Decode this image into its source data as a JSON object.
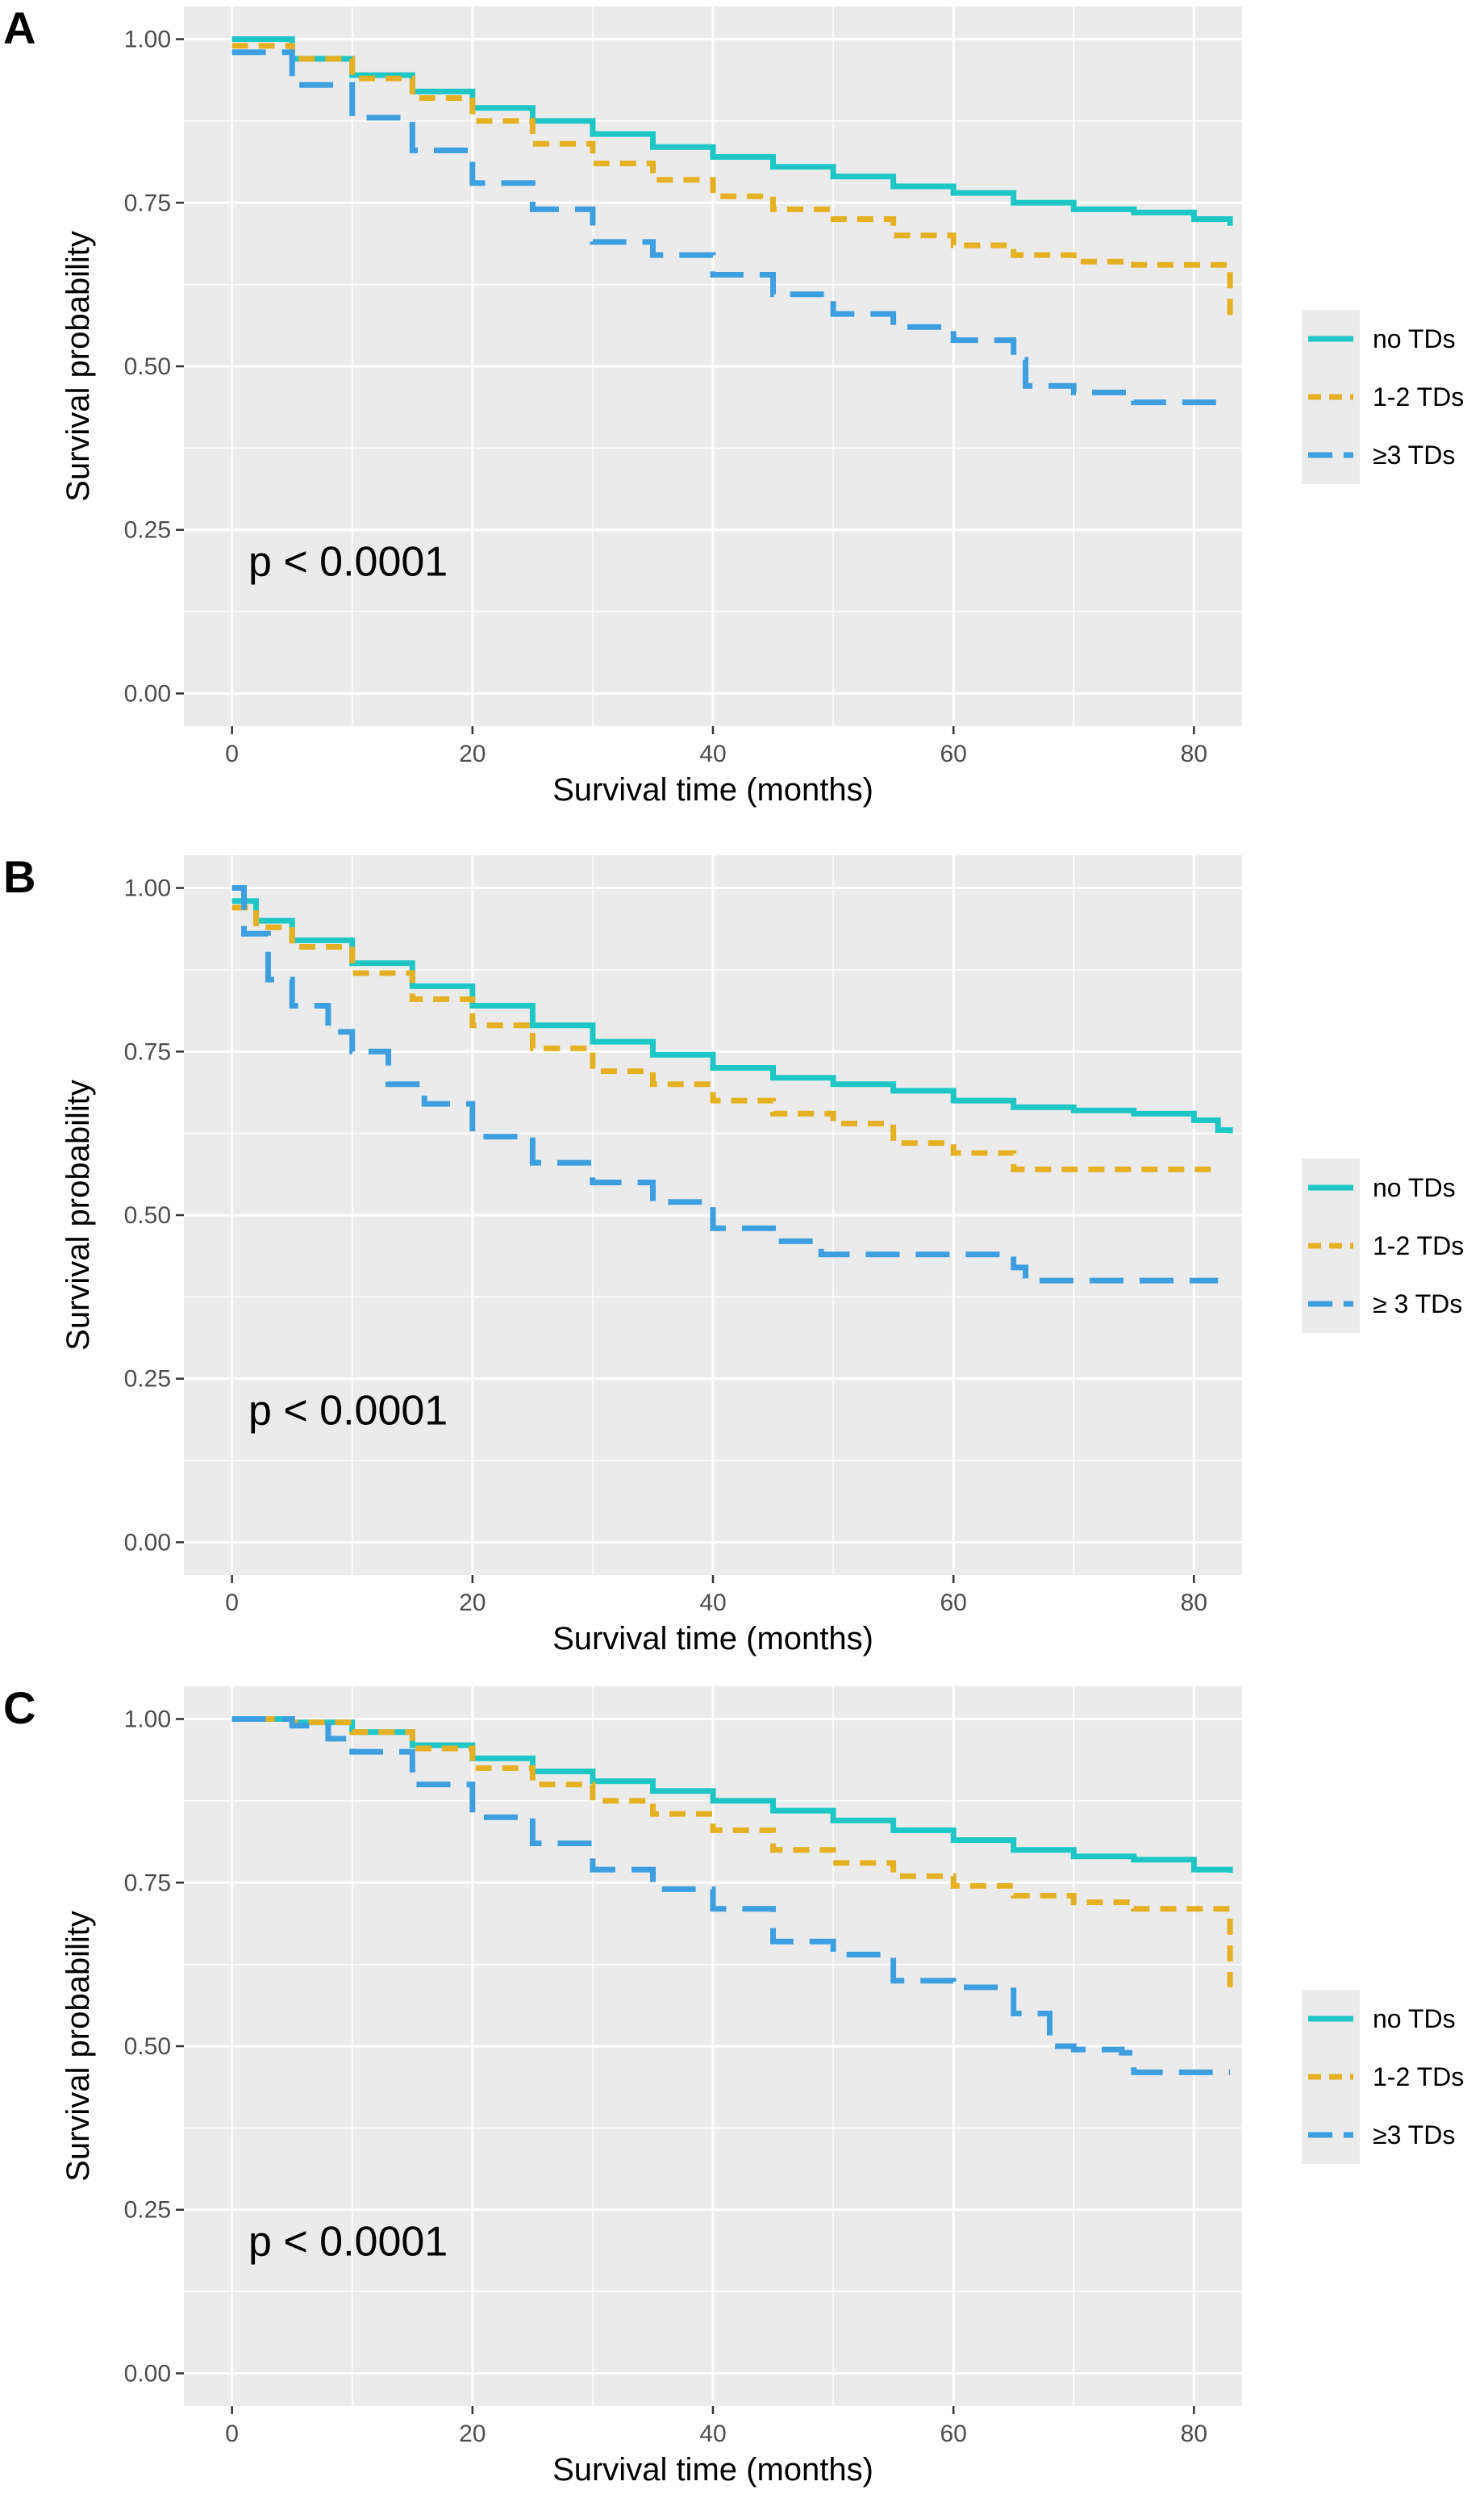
{
  "chart_data": [
    {
      "panel_label": "A",
      "type": "line",
      "subtype": "kaplan-meier",
      "xlabel": "Survival time (months)",
      "ylabel": "Survival probability",
      "xlim": [
        -4,
        84
      ],
      "ylim": [
        -0.05,
        1.05
      ],
      "x_ticks": [
        0,
        20,
        40,
        60,
        80
      ],
      "x_tick_labels": [
        "0",
        "20",
        "40",
        "60",
        "80"
      ],
      "y_ticks": [
        0,
        0.25,
        0.5,
        0.75,
        1.0
      ],
      "y_tick_labels": [
        "0.00",
        "0.25",
        "0.50",
        "0.75",
        "1.00"
      ],
      "grid": true,
      "p_value": "p < 0.0001",
      "legend_position": "right",
      "series": [
        {
          "name": "no TDs",
          "color": "#1fc6c6",
          "dash": "solid",
          "x": [
            0,
            5,
            10,
            15,
            20,
            25,
            30,
            35,
            40,
            45,
            50,
            55,
            60,
            65,
            70,
            75,
            80,
            83
          ],
          "y": [
            1.0,
            0.97,
            0.945,
            0.92,
            0.895,
            0.875,
            0.855,
            0.835,
            0.82,
            0.805,
            0.79,
            0.775,
            0.765,
            0.75,
            0.74,
            0.735,
            0.725,
            0.715
          ]
        },
        {
          "name": "1-2 TDs",
          "color": "#e5b022",
          "dash": "short",
          "x": [
            0,
            5,
            10,
            15,
            20,
            25,
            30,
            35,
            40,
            45,
            50,
            55,
            60,
            65,
            70,
            75,
            80,
            82.9,
            83
          ],
          "y": [
            0.99,
            0.97,
            0.94,
            0.91,
            0.875,
            0.84,
            0.81,
            0.785,
            0.76,
            0.74,
            0.725,
            0.7,
            0.685,
            0.67,
            0.66,
            0.655,
            0.655,
            0.655,
            0.575
          ]
        },
        {
          "name": "≥3 TDs",
          "color": "#3d9fe0",
          "dash": "long",
          "x": [
            0,
            5,
            10,
            15,
            20,
            25,
            30,
            35,
            40,
            45,
            50,
            55,
            60,
            65,
            66,
            70,
            75,
            80,
            83
          ],
          "y": [
            0.98,
            0.93,
            0.88,
            0.83,
            0.78,
            0.74,
            0.69,
            0.67,
            0.64,
            0.61,
            0.58,
            0.56,
            0.54,
            0.51,
            0.47,
            0.46,
            0.445,
            0.445,
            0.445
          ]
        }
      ]
    },
    {
      "panel_label": "B",
      "type": "line",
      "subtype": "kaplan-meier",
      "xlabel": "Survival time (months)",
      "ylabel": "Survival probability",
      "xlim": [
        -4,
        84
      ],
      "ylim": [
        -0.05,
        1.05
      ],
      "x_ticks": [
        0,
        20,
        40,
        60,
        80
      ],
      "x_tick_labels": [
        "0",
        "20",
        "40",
        "60",
        "80"
      ],
      "y_ticks": [
        0,
        0.25,
        0.5,
        0.75,
        1.0
      ],
      "y_tick_labels": [
        "0.00",
        "0.25",
        "0.50",
        "0.75",
        "1.00"
      ],
      "grid": true,
      "p_value": "p < 0.0001",
      "legend_position": "right",
      "series": [
        {
          "name": "no TDs",
          "color": "#1fc6c6",
          "dash": "solid",
          "x": [
            0,
            2,
            5,
            10,
            15,
            20,
            25,
            30,
            35,
            40,
            45,
            50,
            55,
            60,
            65,
            70,
            75,
            80,
            82,
            83
          ],
          "y": [
            0.98,
            0.95,
            0.92,
            0.885,
            0.85,
            0.82,
            0.79,
            0.765,
            0.745,
            0.725,
            0.71,
            0.7,
            0.69,
            0.675,
            0.665,
            0.66,
            0.655,
            0.645,
            0.63,
            0.625
          ]
        },
        {
          "name": "1-2 TDs",
          "color": "#e5b022",
          "dash": "short",
          "x": [
            0,
            2,
            5,
            10,
            15,
            20,
            25,
            30,
            35,
            40,
            45,
            50,
            55,
            60,
            65,
            70,
            75,
            80,
            82
          ],
          "y": [
            0.97,
            0.94,
            0.91,
            0.87,
            0.83,
            0.79,
            0.755,
            0.72,
            0.7,
            0.675,
            0.655,
            0.64,
            0.61,
            0.595,
            0.57,
            0.57,
            0.57,
            0.57,
            0.57
          ]
        },
        {
          "name": "≥ 3 TDs",
          "color": "#3d9fe0",
          "dash": "long",
          "x": [
            0,
            1,
            3,
            5,
            8,
            10,
            13,
            16,
            20,
            25,
            30,
            35,
            40,
            45,
            49,
            55,
            60,
            65,
            66,
            70,
            75,
            80,
            82
          ],
          "y": [
            1.0,
            0.93,
            0.86,
            0.82,
            0.78,
            0.75,
            0.7,
            0.67,
            0.62,
            0.58,
            0.55,
            0.52,
            0.48,
            0.46,
            0.44,
            0.44,
            0.44,
            0.42,
            0.4,
            0.4,
            0.4,
            0.4,
            0.4
          ]
        }
      ]
    },
    {
      "panel_label": "C",
      "type": "line",
      "subtype": "kaplan-meier",
      "xlabel": "Survival time (months)",
      "ylabel": "Survival probability",
      "xlim": [
        -4,
        84
      ],
      "ylim": [
        -0.05,
        1.05
      ],
      "x_ticks": [
        0,
        20,
        40,
        60,
        80
      ],
      "x_tick_labels": [
        "0",
        "20",
        "40",
        "60",
        "80"
      ],
      "y_ticks": [
        0,
        0.25,
        0.5,
        0.75,
        1.0
      ],
      "y_tick_labels": [
        "0.00",
        "0.25",
        "0.50",
        "0.75",
        "1.00"
      ],
      "grid": true,
      "p_value": "p < 0.0001",
      "legend_position": "right",
      "series": [
        {
          "name": "no TDs",
          "color": "#1fc6c6",
          "dash": "solid",
          "x": [
            0,
            5,
            10,
            15,
            20,
            25,
            30,
            35,
            40,
            45,
            50,
            55,
            60,
            65,
            70,
            75,
            80,
            83
          ],
          "y": [
            1.0,
            0.995,
            0.98,
            0.96,
            0.94,
            0.92,
            0.905,
            0.89,
            0.875,
            0.86,
            0.845,
            0.83,
            0.815,
            0.8,
            0.79,
            0.785,
            0.77,
            0.765
          ]
        },
        {
          "name": "1-2 TDs",
          "color": "#e5b022",
          "dash": "short",
          "x": [
            0,
            5,
            10,
            15,
            20,
            25,
            30,
            35,
            40,
            45,
            50,
            55,
            60,
            65,
            70,
            75,
            80,
            82.9,
            83
          ],
          "y": [
            1.0,
            0.995,
            0.98,
            0.955,
            0.925,
            0.9,
            0.875,
            0.855,
            0.83,
            0.8,
            0.78,
            0.76,
            0.745,
            0.73,
            0.72,
            0.71,
            0.71,
            0.71,
            0.59
          ]
        },
        {
          "name": "≥3 TDs",
          "color": "#3d9fe0",
          "dash": "long",
          "x": [
            0,
            5,
            8,
            10,
            15,
            20,
            25,
            30,
            35,
            40,
            45,
            50,
            55,
            60,
            65,
            68,
            70,
            74,
            75,
            80,
            83
          ],
          "y": [
            1.0,
            0.99,
            0.97,
            0.95,
            0.9,
            0.85,
            0.81,
            0.77,
            0.74,
            0.71,
            0.66,
            0.64,
            0.6,
            0.59,
            0.55,
            0.5,
            0.495,
            0.49,
            0.46,
            0.46,
            0.46
          ]
        }
      ]
    }
  ]
}
